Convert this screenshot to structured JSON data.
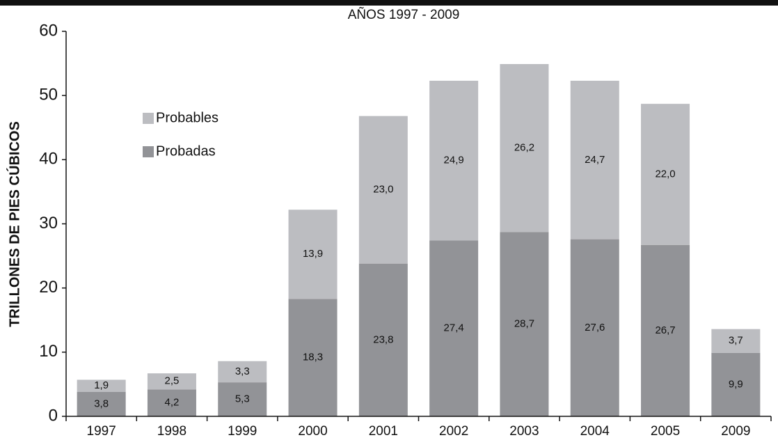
{
  "chart_data": {
    "type": "stacked_bar",
    "subtitle": "AÑOS 1997 - 2009",
    "ylabel": "TRILLONES DE PIES CÚBICOS",
    "categories": [
      "1997",
      "1998",
      "1999",
      "2000",
      "2001",
      "2002",
      "2003",
      "2004",
      "2005",
      "2009"
    ],
    "series": [
      {
        "name": "Probadas",
        "color": "#929397",
        "values": [
          3.8,
          4.2,
          5.3,
          18.3,
          23.8,
          27.4,
          28.7,
          27.6,
          26.7,
          9.9
        ],
        "value_labels": [
          "3,8",
          "4,2",
          "5,3",
          "18,3",
          "23,8",
          "27,4",
          "28,7",
          "27,6",
          "26,7",
          "9,9"
        ]
      },
      {
        "name": "Probables",
        "color": "#bcbdc1",
        "values": [
          1.9,
          2.5,
          3.3,
          13.9,
          23.0,
          24.9,
          26.2,
          24.7,
          22.0,
          3.7
        ],
        "value_labels": [
          "1,9",
          "2,5",
          "3,3",
          "13,9",
          "23,0",
          "24,9",
          "26,2",
          "24,7",
          "22,0",
          "3,7"
        ]
      }
    ],
    "ylim": [
      0,
      60
    ],
    "yticks": [
      0,
      10,
      20,
      30,
      40,
      50,
      60
    ],
    "grid": false
  }
}
